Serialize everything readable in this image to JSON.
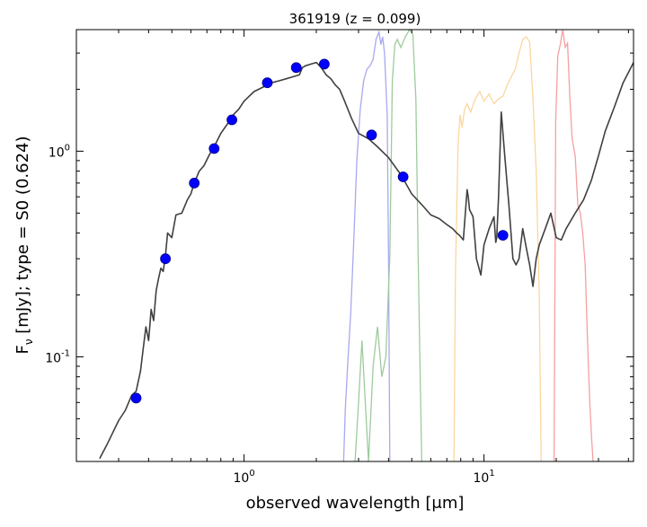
{
  "chart_data": {
    "type": "line",
    "title": "361919 (z = 0.099)",
    "xlabel": "observed wavelength [μm]",
    "ylabel": "Fν [mJy];  type = S0 (0.624)",
    "xscale": "log",
    "yscale": "log",
    "xlim": [
      0.2,
      42
    ],
    "ylim": [
      0.031,
      3.9
    ],
    "x_tick_labels": [
      {
        "value": 1,
        "base": "10",
        "exp": "0"
      },
      {
        "value": 10,
        "base": "10",
        "exp": "1"
      }
    ],
    "y_tick_labels": [
      {
        "value": 0.1,
        "base": "10",
        "exp": "-1"
      },
      {
        "value": 1,
        "base": "10",
        "exp": "0"
      }
    ],
    "grid": false,
    "colors": {
      "model": "#404040",
      "points": "#0000ff",
      "filter_blue": "#a8a8f0",
      "filter_green": "#9ccb9c",
      "filter_orange": "#fbd6a0",
      "filter_red": "#f5a0a0"
    },
    "series": [
      {
        "name": "photometry",
        "kind": "scatter",
        "x": [
          0.355,
          0.47,
          0.62,
          0.75,
          0.89,
          1.25,
          1.65,
          2.16,
          3.4,
          4.6,
          12.0
        ],
        "y": [
          0.063,
          0.3,
          0.7,
          1.03,
          1.42,
          2.15,
          2.55,
          2.65,
          1.2,
          0.75,
          0.39
        ]
      },
      {
        "name": "S0 template",
        "kind": "line",
        "x": [
          0.25,
          0.27,
          0.3,
          0.32,
          0.34,
          0.355,
          0.37,
          0.38,
          0.39,
          0.4,
          0.41,
          0.42,
          0.43,
          0.44,
          0.45,
          0.46,
          0.47,
          0.48,
          0.5,
          0.52,
          0.55,
          0.58,
          0.6,
          0.62,
          0.65,
          0.68,
          0.72,
          0.75,
          0.8,
          0.85,
          0.9,
          0.95,
          1.0,
          1.05,
          1.1,
          1.2,
          1.3,
          1.4,
          1.5,
          1.6,
          1.7,
          1.75,
          1.8,
          1.9,
          2.0,
          2.1,
          2.2,
          2.3,
          2.4,
          2.5,
          2.6,
          2.8,
          3.0,
          3.3,
          3.6,
          4.0,
          4.5,
          5.0,
          5.5,
          6.0,
          6.5,
          7.0,
          7.4,
          7.7,
          7.9,
          8.2,
          8.5,
          8.6,
          8.7,
          9.0,
          9.3,
          9.7,
          10.0,
          10.5,
          11.0,
          11.2,
          11.3,
          11.5,
          11.8,
          12.2,
          12.7,
          13.2,
          13.6,
          14.0,
          14.5,
          15.0,
          15.5,
          16.0,
          16.5,
          17.0,
          18.0,
          19.0,
          20.0,
          21.0,
          22.0,
          24.0,
          26.0,
          28.0,
          30.0,
          32.0,
          35.0,
          38.0,
          42.0
        ],
        "y": [
          0.032,
          0.038,
          0.049,
          0.055,
          0.065,
          0.068,
          0.085,
          0.11,
          0.14,
          0.12,
          0.17,
          0.15,
          0.21,
          0.24,
          0.27,
          0.26,
          0.31,
          0.4,
          0.38,
          0.49,
          0.5,
          0.58,
          0.62,
          0.7,
          0.8,
          0.85,
          0.97,
          1.05,
          1.22,
          1.35,
          1.5,
          1.6,
          1.75,
          1.85,
          1.95,
          2.05,
          2.15,
          2.2,
          2.25,
          2.3,
          2.35,
          2.55,
          2.6,
          2.65,
          2.7,
          2.55,
          2.35,
          2.25,
          2.1,
          2.0,
          1.8,
          1.45,
          1.22,
          1.15,
          1.05,
          0.93,
          0.77,
          0.62,
          0.55,
          0.49,
          0.47,
          0.44,
          0.42,
          0.4,
          0.39,
          0.37,
          0.65,
          0.6,
          0.52,
          0.48,
          0.3,
          0.25,
          0.35,
          0.42,
          0.48,
          0.36,
          0.38,
          0.6,
          1.55,
          0.95,
          0.55,
          0.3,
          0.28,
          0.3,
          0.42,
          0.34,
          0.28,
          0.22,
          0.3,
          0.35,
          0.42,
          0.5,
          0.38,
          0.37,
          0.42,
          0.5,
          0.58,
          0.72,
          0.95,
          1.25,
          1.65,
          2.15,
          2.7
        ]
      },
      {
        "name": "filter W1 (blue)",
        "kind": "filter",
        "x": [
          2.6,
          2.64,
          2.7,
          2.78,
          2.86,
          2.95,
          3.05,
          3.15,
          3.25,
          3.35,
          3.45,
          3.55,
          3.65,
          3.72,
          3.78,
          3.85,
          3.95,
          4.0,
          4.05
        ],
        "y": [
          0.031,
          0.055,
          0.09,
          0.16,
          0.35,
          0.9,
          1.6,
          2.2,
          2.5,
          2.6,
          2.8,
          3.5,
          3.8,
          3.3,
          3.6,
          3.0,
          1.5,
          0.3,
          0.031
        ]
      },
      {
        "name": "filter W2 (green)",
        "kind": "filter",
        "x": [
          2.9,
          3.0,
          3.1,
          3.2,
          3.3,
          3.45,
          3.6,
          3.75,
          3.9,
          4.05,
          4.15,
          4.25,
          4.35,
          4.5,
          4.7,
          4.9,
          5.05,
          5.2,
          5.32,
          5.42,
          5.5
        ],
        "y": [
          0.031,
          0.06,
          0.12,
          0.06,
          0.031,
          0.09,
          0.14,
          0.08,
          0.1,
          0.31,
          2.2,
          3.3,
          3.5,
          3.2,
          3.6,
          3.9,
          3.7,
          1.8,
          0.3,
          0.08,
          0.031
        ]
      },
      {
        "name": "filter W3 (orange)",
        "kind": "filter",
        "x": [
          7.5,
          7.6,
          7.8,
          7.95,
          8.1,
          8.3,
          8.5,
          8.8,
          9.2,
          9.6,
          10.0,
          10.5,
          11.0,
          11.5,
          12.0,
          12.5,
          13.0,
          13.5,
          14.0,
          14.5,
          15.0,
          15.5,
          16.0,
          16.5,
          17.0,
          17.3
        ],
        "y": [
          0.031,
          0.25,
          1.1,
          1.5,
          1.3,
          1.6,
          1.7,
          1.55,
          1.8,
          1.95,
          1.75,
          1.9,
          1.7,
          1.8,
          1.85,
          2.1,
          2.3,
          2.5,
          3.0,
          3.5,
          3.6,
          3.4,
          1.8,
          0.8,
          0.2,
          0.031
        ]
      },
      {
        "name": "filter W4 (red)",
        "kind": "filter",
        "x": [
          19.6,
          19.9,
          20.3,
          20.8,
          21.3,
          21.8,
          22.3,
          22.8,
          23.3,
          24.0,
          24.6,
          25.2,
          25.8,
          26.4,
          27.0,
          27.6,
          28.1,
          28.5
        ],
        "y": [
          0.031,
          1.4,
          2.9,
          3.3,
          3.9,
          3.2,
          3.35,
          1.8,
          1.15,
          0.95,
          0.55,
          0.5,
          0.4,
          0.28,
          0.12,
          0.06,
          0.04,
          0.031
        ]
      }
    ]
  }
}
